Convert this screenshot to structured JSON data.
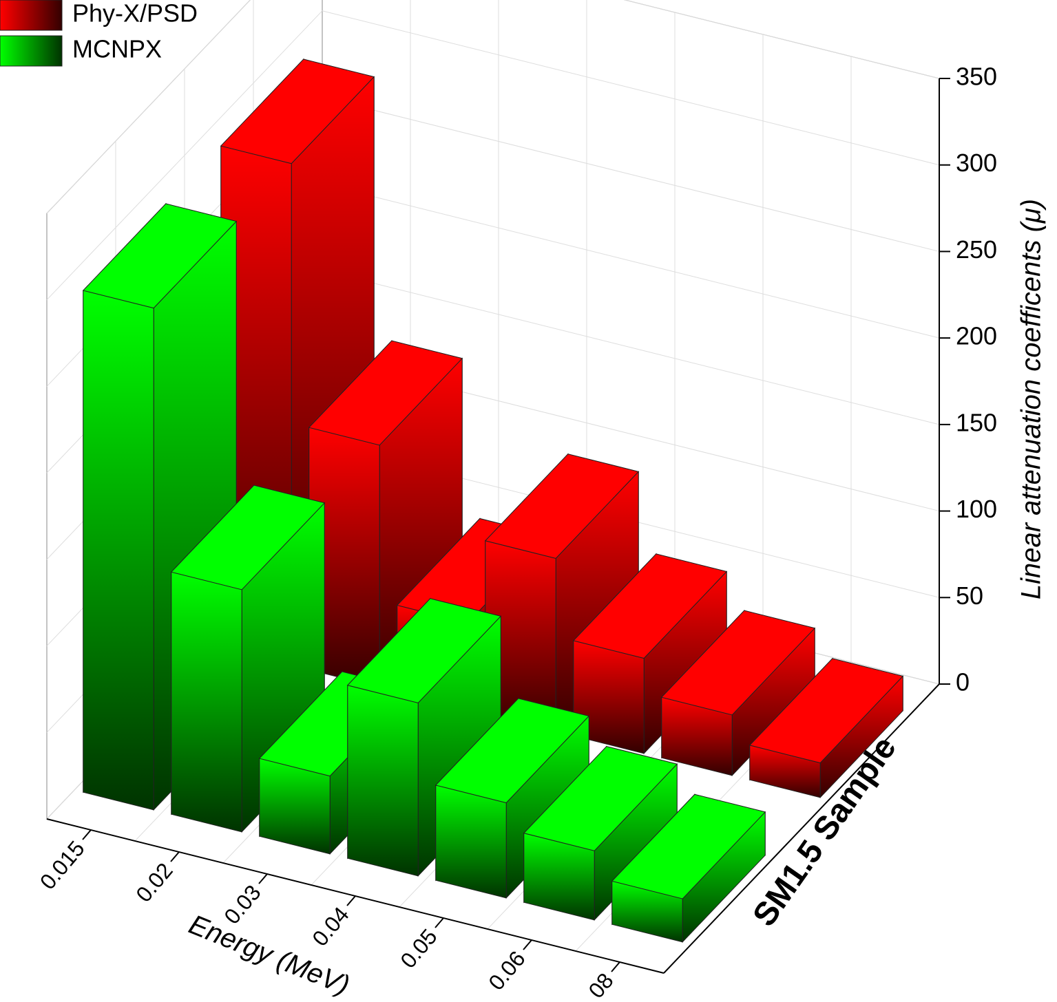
{
  "chart_data": {
    "type": "bar3d",
    "categories": [
      "0.015",
      "0.02",
      "0.03",
      "0.04",
      "0.05",
      "0.06",
      "08"
    ],
    "series": [
      {
        "name": "Phy-X/PSD",
        "color": "#ff0000",
        "values": [
          290,
          140,
          50,
          100,
          55,
          35,
          20
        ]
      },
      {
        "name": "MCNPX",
        "color": "#00ff00",
        "values": [
          290,
          140,
          45,
          100,
          55,
          40,
          25
        ]
      }
    ],
    "ylim": [
      0,
      350
    ],
    "yticks": [
      0,
      50,
      100,
      150,
      200,
      250,
      300,
      350
    ],
    "xlabel": "Energy (MeV)",
    "ylabel": "Linear attenuation coefficents (μ)",
    "zlabel": "SM1.5 Sample",
    "grid": true
  }
}
